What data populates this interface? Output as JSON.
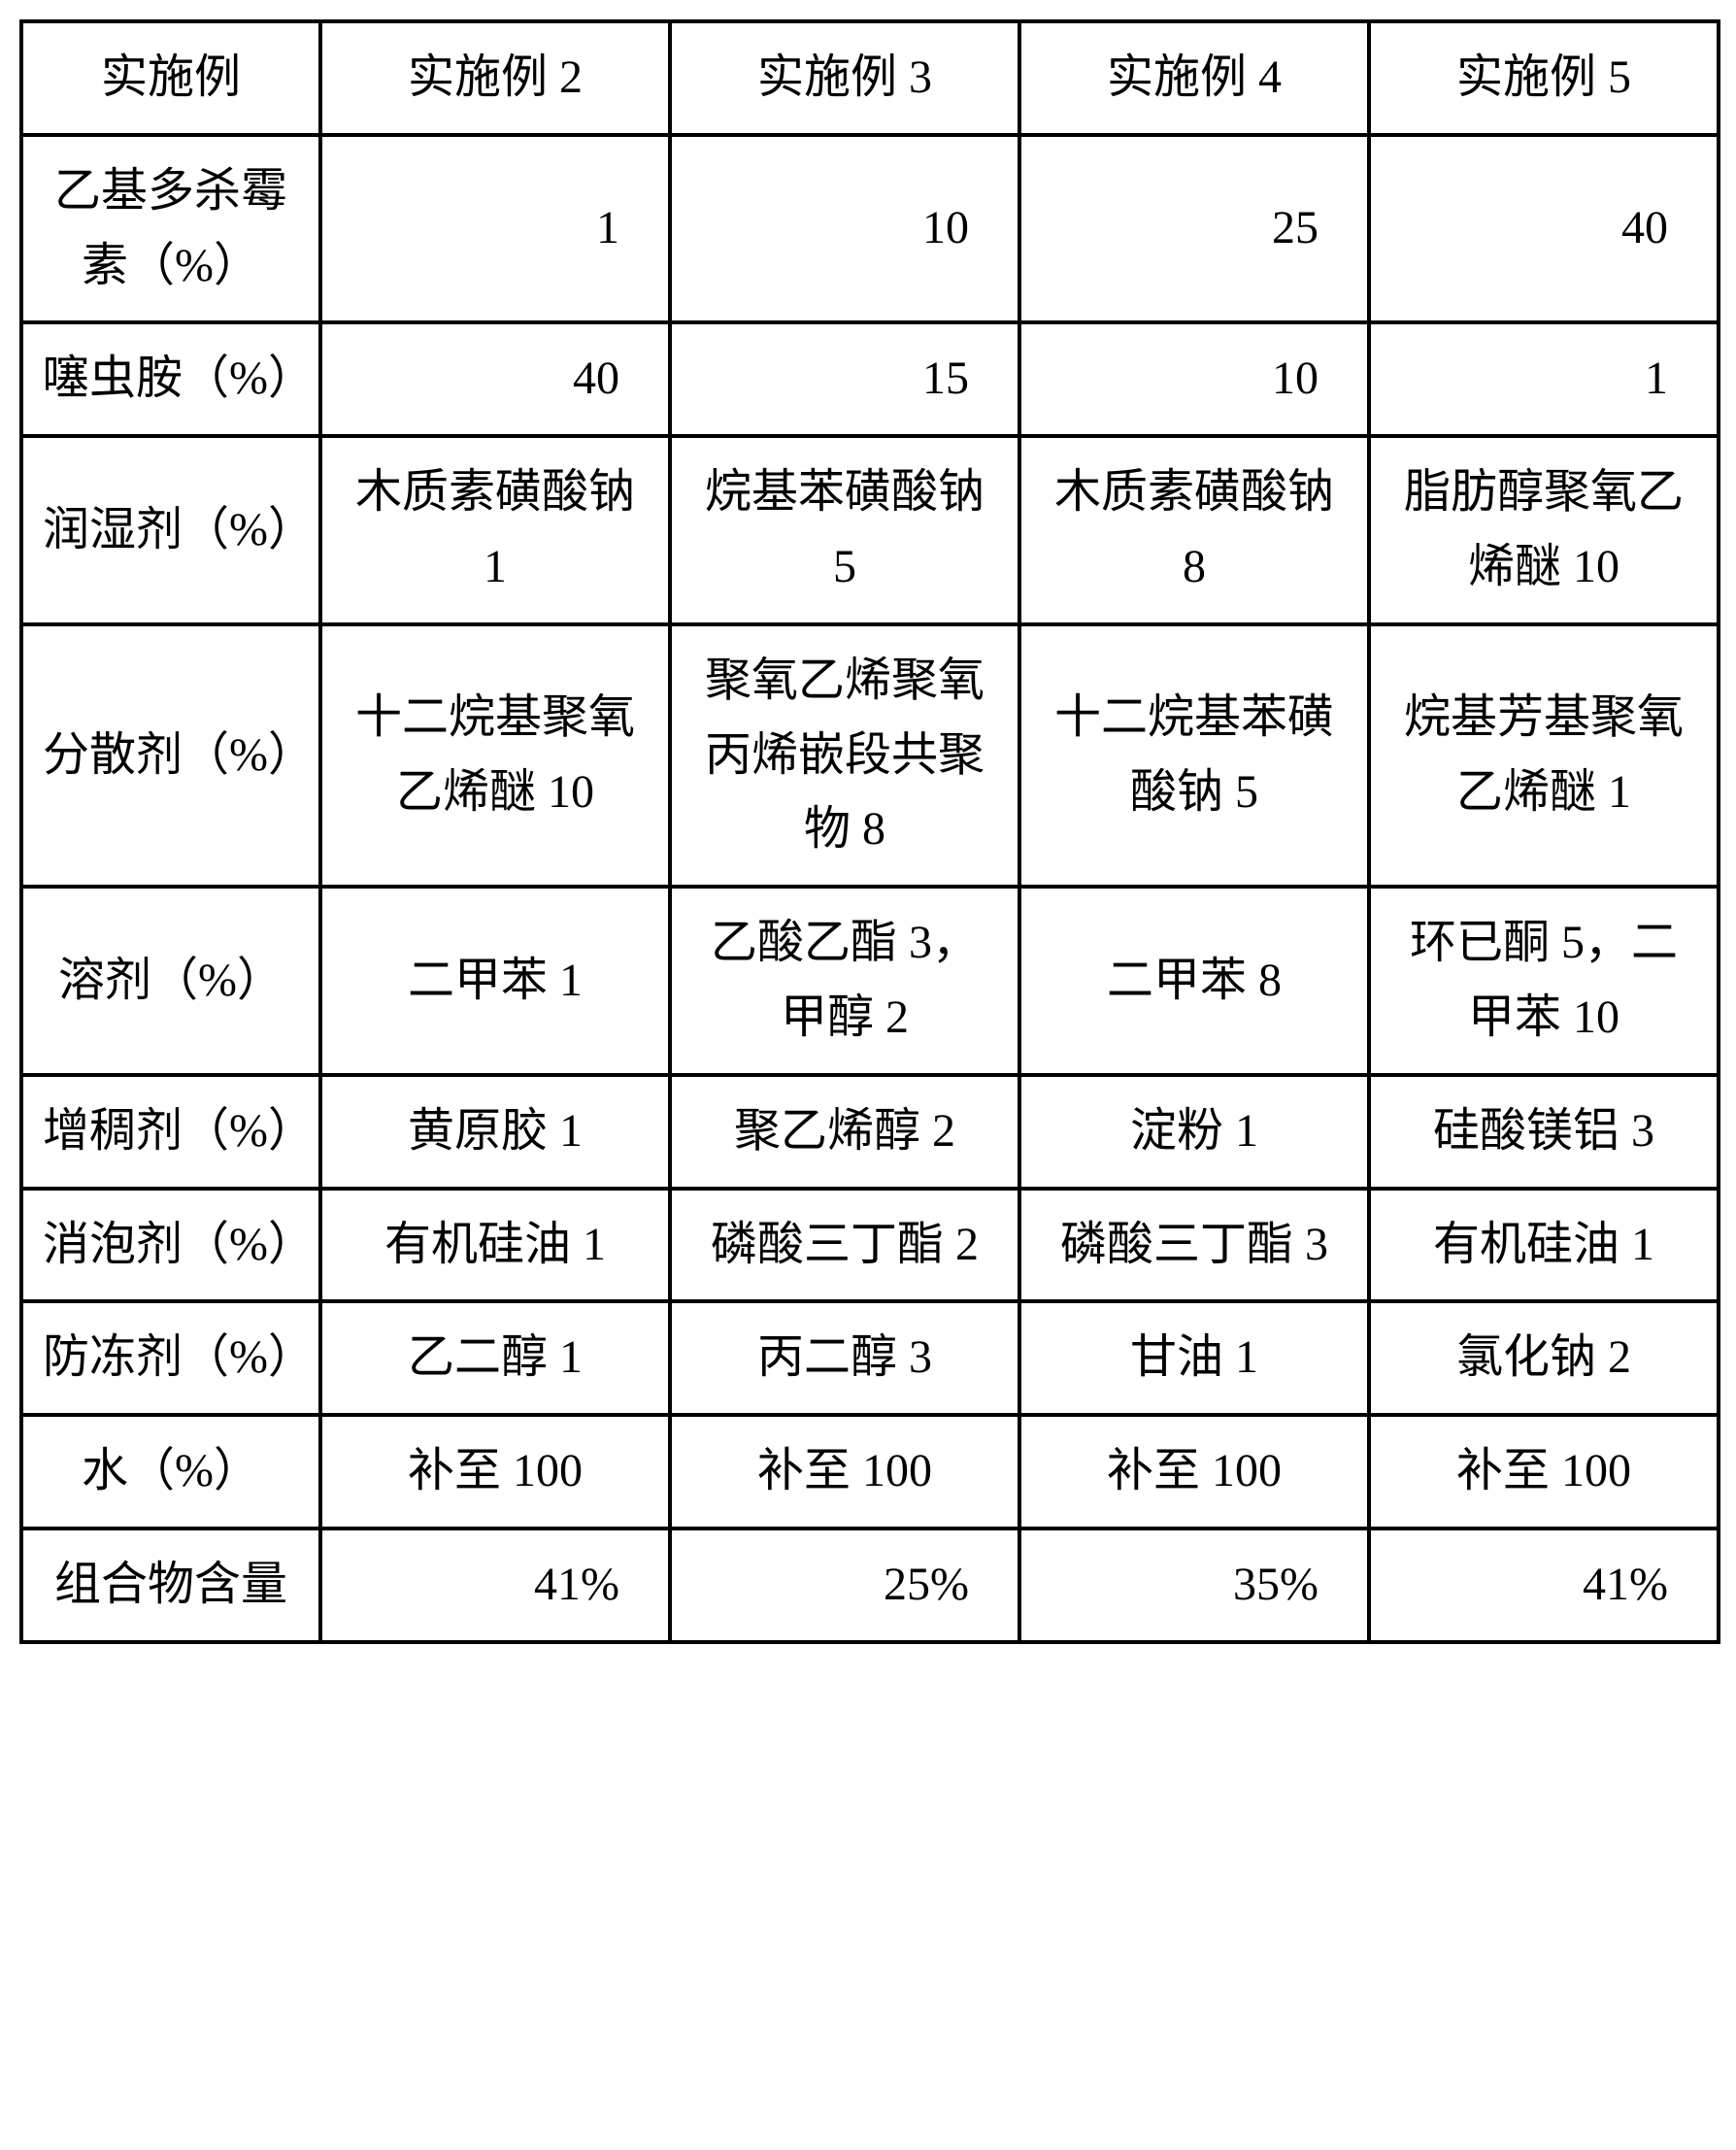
{
  "table": {
    "header": [
      "实施例",
      "实施例 2",
      "实施例 3",
      "实施例 4",
      "实施例 5"
    ],
    "rows": [
      {
        "type": "num",
        "label": "乙基多杀霉素（%）",
        "cells": [
          "1",
          "10",
          "25",
          "40"
        ]
      },
      {
        "type": "num",
        "label": "噻虫胺（%）",
        "cells": [
          "40",
          "15",
          "10",
          "1"
        ]
      },
      {
        "type": "txt",
        "label": "润湿剂（%）",
        "cells": [
          "木质素磺酸钠 1",
          "烷基苯磺酸钠 5",
          "木质素磺酸钠 8",
          "脂肪醇聚氧乙烯醚 10"
        ]
      },
      {
        "type": "txt",
        "label": "分散剂（%）",
        "cells": [
          "十二烷基聚氧乙烯醚 10",
          "聚氧乙烯聚氧丙烯嵌段共聚物 8",
          "十二烷基苯磺酸钠 5",
          "烷基芳基聚氧乙烯醚 1"
        ]
      },
      {
        "type": "txt",
        "label": "溶剂（%）",
        "cells": [
          "二甲苯 1",
          "乙酸乙酯 3，甲醇 2",
          "二甲苯 8",
          "环已酮 5，二甲苯 10"
        ]
      },
      {
        "type": "txt",
        "label": "增稠剂（%）",
        "cells": [
          "黄原胶 1",
          "聚乙烯醇 2",
          "淀粉 1",
          "硅酸镁铝 3"
        ]
      },
      {
        "type": "txt",
        "label": "消泡剂（%）",
        "cells": [
          "有机硅油 1",
          "磷酸三丁酯 2",
          "磷酸三丁酯 3",
          "有机硅油 1"
        ]
      },
      {
        "type": "txt",
        "label": "防冻剂（%）",
        "cells": [
          "乙二醇 1",
          "丙二醇 3",
          "甘油 1",
          "氯化钠 2"
        ]
      },
      {
        "type": "water",
        "label": "水（%）",
        "cells": [
          "补至 100",
          "补至 100",
          "补至 100",
          "补至 100"
        ]
      },
      {
        "type": "pct",
        "label": "组合物含量",
        "cells": [
          "41%",
          "25%",
          "35%",
          "41%"
        ]
      }
    ]
  }
}
